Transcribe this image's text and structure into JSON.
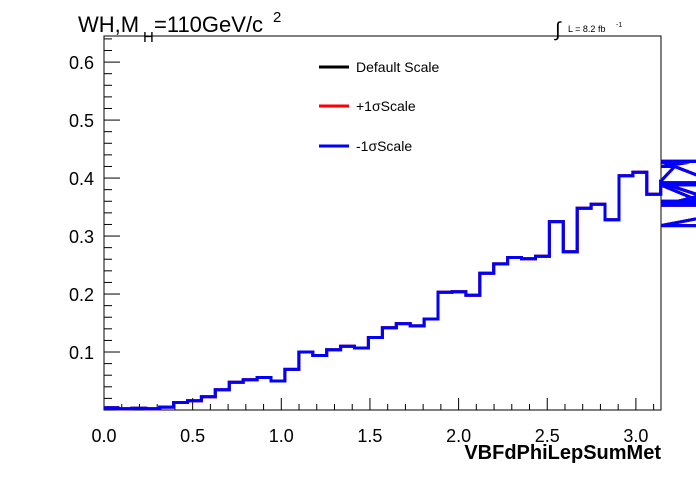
{
  "chart_data": {
    "type": "line",
    "title_main": "WH,M",
    "title_sub": "H",
    "title_rest": "=110GeV/c",
    "title_sup": "2",
    "lumi_prefix": "∫",
    "lumi_text": "L = 8.2 fb",
    "lumi_sup": "-1",
    "xlabel": "VBFdPhiLepSumMet",
    "xlim": [
      0.0,
      3.1416
    ],
    "ylim": [
      0.0,
      0.645
    ],
    "xticks": [
      "0.0",
      "0.5",
      "1.0",
      "1.5",
      "2.0",
      "2.5",
      "3.0"
    ],
    "yticks": [
      "0.1",
      "0.2",
      "0.3",
      "0.4",
      "0.5",
      "0.6"
    ],
    "legend_position": "top-center",
    "bin_width": 0.0785,
    "series": [
      {
        "name": "Default Scale",
        "color": "#000000",
        "values": [
          0.004,
          0.002,
          0.003,
          0.002,
          0.005,
          0.013,
          0.016,
          0.023,
          0.035,
          0.048,
          0.052,
          0.056,
          0.05,
          0.07,
          0.1,
          0.094,
          0.104,
          0.11,
          0.107,
          0.125,
          0.142,
          0.149,
          0.145,
          0.157,
          0.203,
          0.204,
          0.198,
          0.236,
          0.252,
          0.263,
          0.261,
          0.265,
          0.325,
          0.273,
          0.348,
          0.355,
          0.328,
          0.404,
          0.41,
          0.372,
          0.395,
          0.42,
          0.427,
          0.429,
          0.392,
          0.353,
          0.388,
          0.318,
          0.355,
          0.36
        ]
      },
      {
        "name": "+1σScale",
        "color": "#ff0000",
        "values": [
          0.004,
          0.002,
          0.003,
          0.002,
          0.005,
          0.013,
          0.016,
          0.023,
          0.035,
          0.048,
          0.052,
          0.056,
          0.05,
          0.07,
          0.1,
          0.094,
          0.104,
          0.11,
          0.107,
          0.125,
          0.142,
          0.149,
          0.145,
          0.157,
          0.203,
          0.204,
          0.198,
          0.236,
          0.252,
          0.263,
          0.261,
          0.265,
          0.325,
          0.273,
          0.348,
          0.355,
          0.328,
          0.404,
          0.41,
          0.372,
          0.395,
          0.42,
          0.427,
          0.429,
          0.392,
          0.353,
          0.388,
          0.318,
          0.355,
          0.36
        ]
      },
      {
        "name": "-1σScale",
        "color": "#0000ff",
        "values": [
          0.004,
          0.002,
          0.003,
          0.002,
          0.005,
          0.013,
          0.016,
          0.023,
          0.035,
          0.048,
          0.052,
          0.056,
          0.05,
          0.07,
          0.1,
          0.094,
          0.104,
          0.11,
          0.107,
          0.125,
          0.142,
          0.149,
          0.145,
          0.157,
          0.203,
          0.204,
          0.198,
          0.236,
          0.252,
          0.263,
          0.261,
          0.265,
          0.325,
          0.273,
          0.348,
          0.355,
          0.328,
          0.404,
          0.41,
          0.372,
          0.395,
          0.42,
          0.427,
          0.429,
          0.392,
          0.353,
          0.388,
          0.318,
          0.355,
          0.36
        ]
      }
    ]
  }
}
